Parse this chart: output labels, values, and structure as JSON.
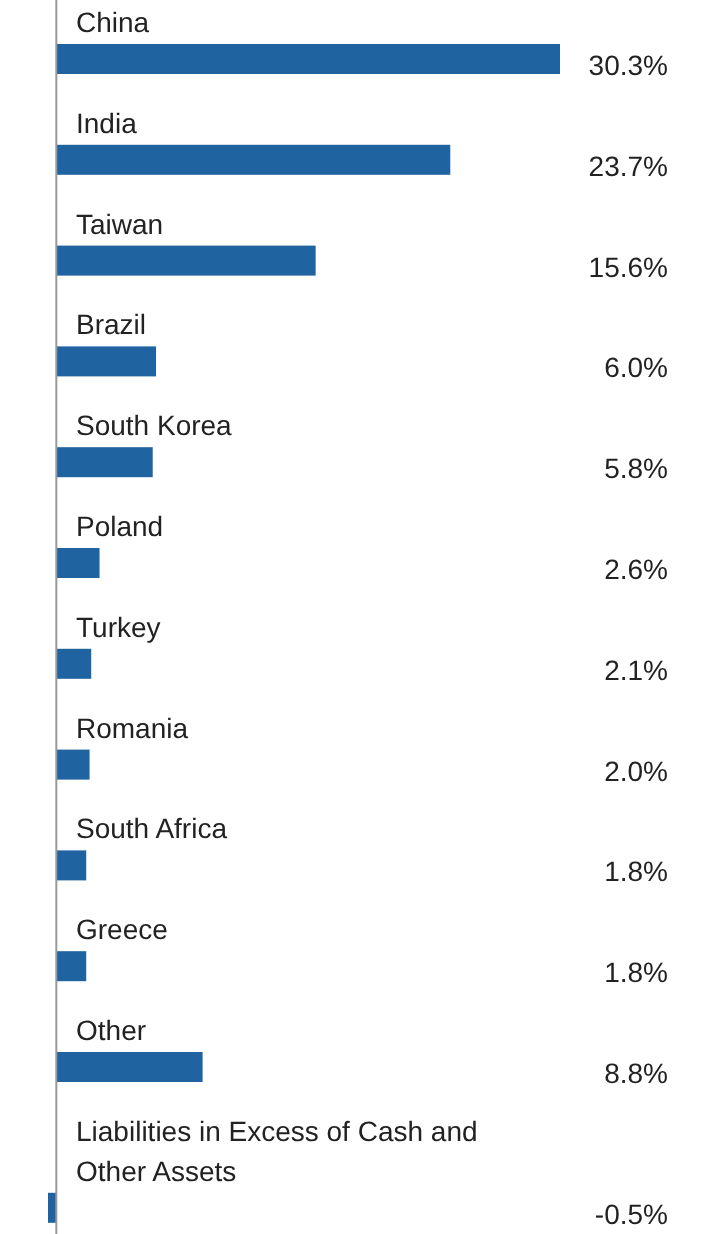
{
  "chart_data": {
    "type": "bar",
    "orientation": "horizontal",
    "categories": [
      "China",
      "India",
      "Taiwan",
      "Brazil",
      "South Korea",
      "Poland",
      "Turkey",
      "Romania",
      "South Africa",
      "Greece",
      "Other",
      "Liabilities in Excess of Cash and Other Assets"
    ],
    "values": [
      30.3,
      23.7,
      15.6,
      6.0,
      5.8,
      2.6,
      2.1,
      2.0,
      1.8,
      1.8,
      8.8,
      -0.5
    ],
    "value_labels": [
      "30.3%",
      "23.7%",
      "15.6%",
      "6.0%",
      "5.8%",
      "2.6%",
      "2.1%",
      "2.0%",
      "1.8%",
      "1.8%",
      "8.8%",
      "-0.5%"
    ],
    "color": "#1f63a0",
    "xlim": [
      -0.5,
      30.3
    ]
  }
}
